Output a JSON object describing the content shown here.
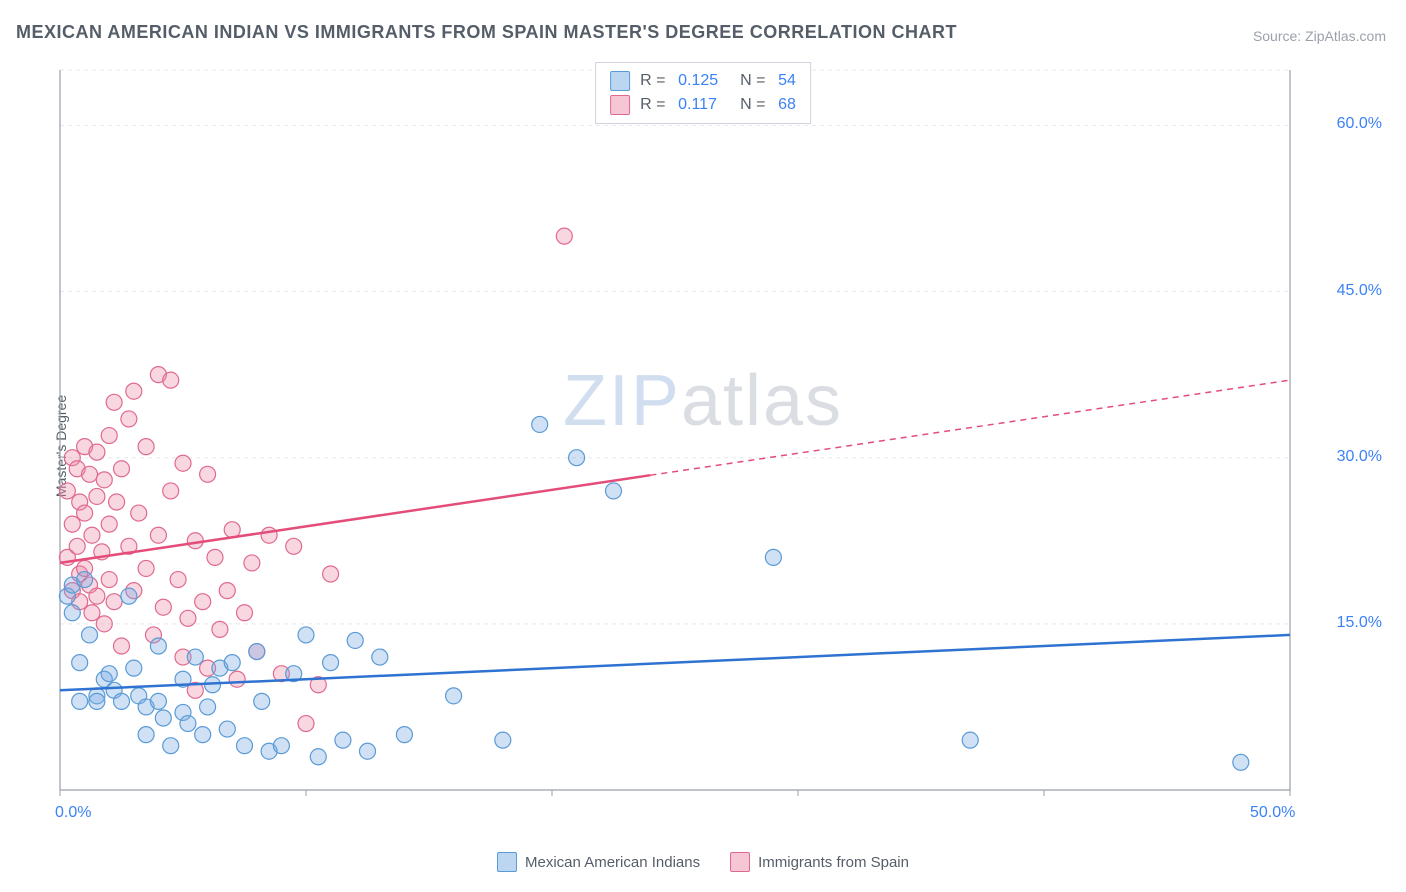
{
  "title": "MEXICAN AMERICAN INDIAN VS IMMIGRANTS FROM SPAIN MASTER'S DEGREE CORRELATION CHART",
  "source": "Source: ZipAtlas.com",
  "ylabel": "Master's Degree",
  "watermark_zip": "ZIP",
  "watermark_atlas": "atlas",
  "chart": {
    "type": "scatter",
    "xlim": [
      0,
      50
    ],
    "ylim": [
      0,
      65
    ],
    "ytick_values": [
      15,
      30,
      45,
      60
    ],
    "ytick_labels": [
      "15.0%",
      "30.0%",
      "45.0%",
      "60.0%"
    ],
    "xtick_values": [
      0,
      50
    ],
    "xtick_labels": [
      "0.0%",
      "50.0%"
    ],
    "xgrid_values": [
      0,
      10,
      20,
      30,
      40,
      50
    ],
    "background_color": "#ffffff",
    "grid_color": "#e5e7eb",
    "axis_color": "#9aa1aa",
    "marker_radius": 8,
    "marker_stroke_width": 1.2,
    "trend_line_width": 2.5,
    "series": [
      {
        "name": "Mexican American Indians",
        "fill_color": "rgba(120,170,230,0.35)",
        "stroke_color": "#5a9bd5",
        "swatch_fill": "#bcd6f2",
        "swatch_border": "#5a9bd5",
        "R": "0.125",
        "N": "54",
        "trend_color": "#2e73d2",
        "trend_y_start": 9.0,
        "trend_y_end": 14.0,
        "trend_solid_x_end": 50,
        "points": [
          [
            0.3,
            17.5
          ],
          [
            0.5,
            16.0
          ],
          [
            0.5,
            18.5
          ],
          [
            0.8,
            8.0
          ],
          [
            0.8,
            11.5
          ],
          [
            1.0,
            19.0
          ],
          [
            1.2,
            14.0
          ],
          [
            1.5,
            8.5
          ],
          [
            1.5,
            8.0
          ],
          [
            1.8,
            10.0
          ],
          [
            2.0,
            10.5
          ],
          [
            2.2,
            9.0
          ],
          [
            2.5,
            8.0
          ],
          [
            2.8,
            17.5
          ],
          [
            3.0,
            11.0
          ],
          [
            3.2,
            8.5
          ],
          [
            3.5,
            7.5
          ],
          [
            3.5,
            5.0
          ],
          [
            4.0,
            13.0
          ],
          [
            4.0,
            8.0
          ],
          [
            4.2,
            6.5
          ],
          [
            4.5,
            4.0
          ],
          [
            5.0,
            7.0
          ],
          [
            5.0,
            10.0
          ],
          [
            5.2,
            6.0
          ],
          [
            5.5,
            12.0
          ],
          [
            5.8,
            5.0
          ],
          [
            6.0,
            7.5
          ],
          [
            6.2,
            9.5
          ],
          [
            6.5,
            11.0
          ],
          [
            6.8,
            5.5
          ],
          [
            7.0,
            11.5
          ],
          [
            7.5,
            4.0
          ],
          [
            8.0,
            12.5
          ],
          [
            8.2,
            8.0
          ],
          [
            8.5,
            3.5
          ],
          [
            9.0,
            4.0
          ],
          [
            9.5,
            10.5
          ],
          [
            10.0,
            14.0
          ],
          [
            10.5,
            3.0
          ],
          [
            11.0,
            11.5
          ],
          [
            11.5,
            4.5
          ],
          [
            12.0,
            13.5
          ],
          [
            12.5,
            3.5
          ],
          [
            13.0,
            12.0
          ],
          [
            14.0,
            5.0
          ],
          [
            16.0,
            8.5
          ],
          [
            18.0,
            4.5
          ],
          [
            19.5,
            33.0
          ],
          [
            21.0,
            30.0
          ],
          [
            22.5,
            27.0
          ],
          [
            29.0,
            21.0
          ],
          [
            37.0,
            4.5
          ],
          [
            48.0,
            2.5
          ]
        ]
      },
      {
        "name": "Immigrants from Spain",
        "fill_color": "rgba(235,140,165,0.35)",
        "stroke_color": "#e06a8f",
        "swatch_fill": "#f6c6d4",
        "swatch_border": "#e06a8f",
        "R": "0.117",
        "N": "68",
        "trend_color": "#e44d7a",
        "trend_y_start": 20.5,
        "trend_y_end": 37.0,
        "trend_solid_x_end": 24,
        "points": [
          [
            0.3,
            27.0
          ],
          [
            0.3,
            21.0
          ],
          [
            0.5,
            30.0
          ],
          [
            0.5,
            24.0
          ],
          [
            0.5,
            18.0
          ],
          [
            0.7,
            29.0
          ],
          [
            0.7,
            22.0
          ],
          [
            0.8,
            19.5
          ],
          [
            0.8,
            26.0
          ],
          [
            0.8,
            17.0
          ],
          [
            1.0,
            31.0
          ],
          [
            1.0,
            25.0
          ],
          [
            1.0,
            20.0
          ],
          [
            1.2,
            28.5
          ],
          [
            1.2,
            18.5
          ],
          [
            1.3,
            23.0
          ],
          [
            1.3,
            16.0
          ],
          [
            1.5,
            30.5
          ],
          [
            1.5,
            26.5
          ],
          [
            1.5,
            17.5
          ],
          [
            1.7,
            21.5
          ],
          [
            1.8,
            28.0
          ],
          [
            1.8,
            15.0
          ],
          [
            2.0,
            32.0
          ],
          [
            2.0,
            24.0
          ],
          [
            2.0,
            19.0
          ],
          [
            2.2,
            35.0
          ],
          [
            2.2,
            17.0
          ],
          [
            2.3,
            26.0
          ],
          [
            2.5,
            29.0
          ],
          [
            2.5,
            13.0
          ],
          [
            2.8,
            22.0
          ],
          [
            2.8,
            33.5
          ],
          [
            3.0,
            18.0
          ],
          [
            3.0,
            36.0
          ],
          [
            3.2,
            25.0
          ],
          [
            3.5,
            20.0
          ],
          [
            3.5,
            31.0
          ],
          [
            3.8,
            14.0
          ],
          [
            4.0,
            37.5
          ],
          [
            4.0,
            23.0
          ],
          [
            4.2,
            16.5
          ],
          [
            4.5,
            27.0
          ],
          [
            4.5,
            37.0
          ],
          [
            4.8,
            19.0
          ],
          [
            5.0,
            29.5
          ],
          [
            5.0,
            12.0
          ],
          [
            5.2,
            15.5
          ],
          [
            5.5,
            22.5
          ],
          [
            5.5,
            9.0
          ],
          [
            5.8,
            17.0
          ],
          [
            6.0,
            28.5
          ],
          [
            6.0,
            11.0
          ],
          [
            6.3,
            21.0
          ],
          [
            6.5,
            14.5
          ],
          [
            6.8,
            18.0
          ],
          [
            7.0,
            23.5
          ],
          [
            7.2,
            10.0
          ],
          [
            7.5,
            16.0
          ],
          [
            7.8,
            20.5
          ],
          [
            8.0,
            12.5
          ],
          [
            8.5,
            23.0
          ],
          [
            9.0,
            10.5
          ],
          [
            9.5,
            22.0
          ],
          [
            10.0,
            6.0
          ],
          [
            10.5,
            9.5
          ],
          [
            11.0,
            19.5
          ],
          [
            20.5,
            50.0
          ]
        ]
      }
    ]
  },
  "legend": {
    "R_label": "R =",
    "N_label": "N ="
  }
}
